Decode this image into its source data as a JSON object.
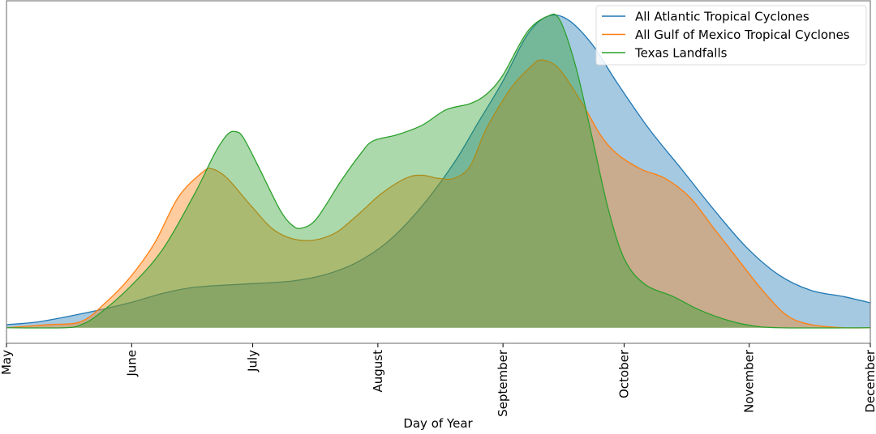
{
  "chart_data": {
    "type": "area",
    "title": "",
    "xlabel": "Day of Year",
    "ylabel": "",
    "xlim": [
      121,
      335
    ],
    "ylim": [
      -0.05,
      1.05
    ],
    "y_ticks_shown": false,
    "grid": false,
    "legend_placement": "top-right",
    "ticks": [
      {
        "label": "May",
        "x": 121
      },
      {
        "label": "June",
        "x": 152
      },
      {
        "label": "July",
        "x": 182
      },
      {
        "label": "August",
        "x": 213
      },
      {
        "label": "September",
        "x": 244
      },
      {
        "label": "October",
        "x": 274
      },
      {
        "label": "November",
        "x": 305
      },
      {
        "label": "December",
        "x": 335
      }
    ],
    "series": [
      {
        "name": "All Atlantic Tropical Cyclones",
        "color": "#1f77b4",
        "x": [
          121,
          129.4,
          141.5,
          151.5,
          159.6,
          167.6,
          179.7,
          191.7,
          199.8,
          207.8,
          215.8,
          223.9,
          231.9,
          237.9,
          243.9,
          250,
          255,
          260,
          266.1,
          272.1,
          280.1,
          288.2,
          296.2,
          304.2,
          312.3,
          320.3,
          328.4,
          335
        ],
        "y": [
          0.01,
          0.02,
          0.05,
          0.08,
          0.11,
          0.13,
          0.14,
          0.15,
          0.17,
          0.21,
          0.28,
          0.39,
          0.53,
          0.66,
          0.79,
          0.94,
          1.0,
          0.99,
          0.91,
          0.79,
          0.64,
          0.51,
          0.38,
          0.26,
          0.17,
          0.12,
          0.1,
          0.08
        ]
      },
      {
        "name": "All Gulf of Mexico Tropical Cyclones",
        "color": "#ff7f0e",
        "x": [
          121,
          131.4,
          139.5,
          145.5,
          151.5,
          157.6,
          163.6,
          169.6,
          172,
          175.7,
          181.7,
          187.7,
          194.7,
          201.8,
          207.8,
          213.8,
          219.9,
          223.9,
          227.9,
          231.9,
          235.9,
          239.9,
          246,
          251,
          253.6,
          258,
          264.1,
          268.1,
          272.1,
          278.1,
          284.1,
          290.2,
          296.2,
          302.2,
          308.3,
          314.3,
          320.3,
          328.4,
          335
        ],
        "y": [
          0,
          0.01,
          0.02,
          0.08,
          0.16,
          0.27,
          0.42,
          0.5,
          0.51,
          0.48,
          0.39,
          0.31,
          0.28,
          0.3,
          0.36,
          0.43,
          0.48,
          0.49,
          0.48,
          0.48,
          0.52,
          0.64,
          0.77,
          0.84,
          0.86,
          0.83,
          0.71,
          0.62,
          0.56,
          0.51,
          0.48,
          0.42,
          0.32,
          0.22,
          0.12,
          0.04,
          0.01,
          0,
          0
        ]
      },
      {
        "name": "Texas Landfalls",
        "color": "#2ca02c",
        "x": [
          121,
          135.5,
          139.5,
          143.5,
          151.5,
          159.6,
          167.6,
          172.6,
          175.7,
          177.7,
          179.7,
          183.7,
          188.7,
          191.7,
          194.1,
          197.8,
          203.8,
          208.8,
          211.8,
          217.8,
          223.9,
          229.9,
          235.9,
          239.9,
          243.9,
          250,
          255,
          258,
          262,
          266.1,
          270.1,
          274.1,
          279.1,
          286.2,
          292.2,
          298.2,
          304.2,
          312.3,
          335
        ],
        "y": [
          0,
          0,
          0.01,
          0.04,
          0.13,
          0.25,
          0.43,
          0.56,
          0.62,
          0.63,
          0.61,
          0.51,
          0.38,
          0.33,
          0.32,
          0.35,
          0.47,
          0.56,
          0.6,
          0.62,
          0.65,
          0.7,
          0.72,
          0.75,
          0.81,
          0.95,
          1.0,
          0.99,
          0.84,
          0.61,
          0.38,
          0.22,
          0.14,
          0.1,
          0.06,
          0.03,
          0.01,
          0,
          0
        ]
      }
    ]
  }
}
